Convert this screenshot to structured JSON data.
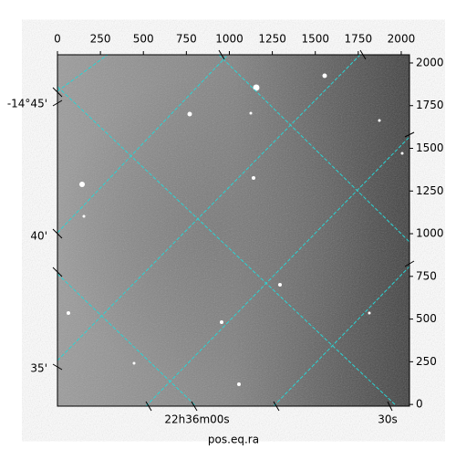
{
  "chart_data": {
    "type": "image",
    "xlabel": "pos.eq.ra",
    "xlim": [
      0,
      2048
    ],
    "ylim": [
      -10,
      2048
    ],
    "xticks": [
      0,
      250,
      500,
      750,
      1000,
      1250,
      1500,
      1750,
      2000
    ],
    "yticks": [
      0,
      250,
      500,
      750,
      1000,
      1250,
      1500,
      1750,
      2000
    ],
    "dec_labels": [
      "-14°45'",
      "40'",
      "35'"
    ],
    "ra_labels": [
      "22h36m00s",
      "30s"
    ]
  }
}
